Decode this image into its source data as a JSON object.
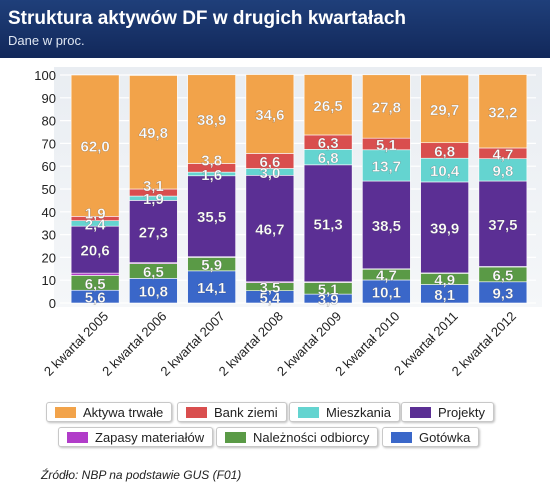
{
  "header": {
    "title": "Struktura aktywów DF w drugich kwartałach",
    "subtitle": "Dane w proc."
  },
  "source": "Źródło: NBP na podstawie GUS (F01)",
  "chart_data": {
    "type": "bar",
    "stacked": true,
    "title": "Struktura aktywów DF w drugich kwartałach",
    "subtitle": "Dane w proc.",
    "categories": [
      "2 kwartał 2005",
      "2 kwartał 2006",
      "2 kwartał 2007",
      "2 kwartał 2008",
      "2 kwartał 2009",
      "2 kwartał 2010",
      "2 kwartał 2011",
      "2 kwartał 2012"
    ],
    "ylim": [
      0,
      100
    ],
    "yticks": [
      "0",
      "10",
      "20",
      "30",
      "40",
      "50",
      "60",
      "70",
      "80",
      "90",
      "100"
    ],
    "grid": true,
    "legend_position": "bottom",
    "series": [
      {
        "name": "Gotówka",
        "color": "#3a67c9",
        "values": [
          5.6,
          10.8,
          14.1,
          5.4,
          3.9,
          10.1,
          8.1,
          9.3
        ],
        "labels": [
          "5,6",
          "10,8",
          "14,1",
          "5,4",
          "3,9",
          "10,1",
          "8,1",
          "9,3"
        ]
      },
      {
        "name": "Należności odbiorcy",
        "color": "#5a9a46",
        "values": [
          6.5,
          6.5,
          5.9,
          3.5,
          5.1,
          4.7,
          4.9,
          6.5
        ],
        "labels": [
          "6,5",
          "6,5",
          "5,9",
          "3,5",
          "5,1",
          "4,7",
          "4,9",
          "6,5"
        ]
      },
      {
        "name": "Zapasy materiałów",
        "color": "#b13cc9",
        "values": [
          1.0,
          0.4,
          0.3,
          0.4,
          0.3,
          0.2,
          0.2,
          0.2
        ],
        "labels": [
          "",
          "",
          "",
          "",
          "",
          "",
          "",
          ""
        ]
      },
      {
        "name": "Projekty",
        "color": "#5b2f94",
        "values": [
          20.6,
          27.3,
          35.5,
          46.7,
          51.3,
          38.5,
          39.9,
          37.5
        ],
        "labels": [
          "20,6",
          "27,3",
          "35,5",
          "46,7",
          "51,3",
          "38,5",
          "39,9",
          "37,5"
        ]
      },
      {
        "name": "Mieszkania",
        "color": "#64d4d0",
        "values": [
          2.4,
          1.9,
          1.6,
          3.0,
          6.8,
          13.7,
          10.4,
          9.8
        ],
        "labels": [
          "2,4",
          "1,9",
          "1,6",
          "3,0",
          "6,8",
          "13,7",
          "10,4",
          "9,8"
        ]
      },
      {
        "name": "Bank ziemi",
        "color": "#d94e4e",
        "values": [
          1.9,
          3.1,
          3.8,
          6.6,
          6.3,
          5.1,
          6.8,
          4.7
        ],
        "labels": [
          "1,9",
          "3,1",
          "3,8",
          "6,6",
          "6,3",
          "5,1",
          "6,8",
          "4,7"
        ]
      },
      {
        "name": "Aktywa trwałe",
        "color": "#f2a34a",
        "values": [
          62.0,
          49.8,
          38.9,
          34.6,
          26.5,
          27.8,
          29.7,
          32.2
        ],
        "labels": [
          "62,0",
          "49,8",
          "38,9",
          "34,6",
          "26,5",
          "27,8",
          "29,7",
          "32,2"
        ]
      }
    ],
    "legend": [
      "Aktywa trwałe",
      "Bank ziemi",
      "Mieszkania",
      "Projekty",
      "Zapasy materiałów",
      "Należności odbiorcy",
      "Gotówka"
    ]
  }
}
